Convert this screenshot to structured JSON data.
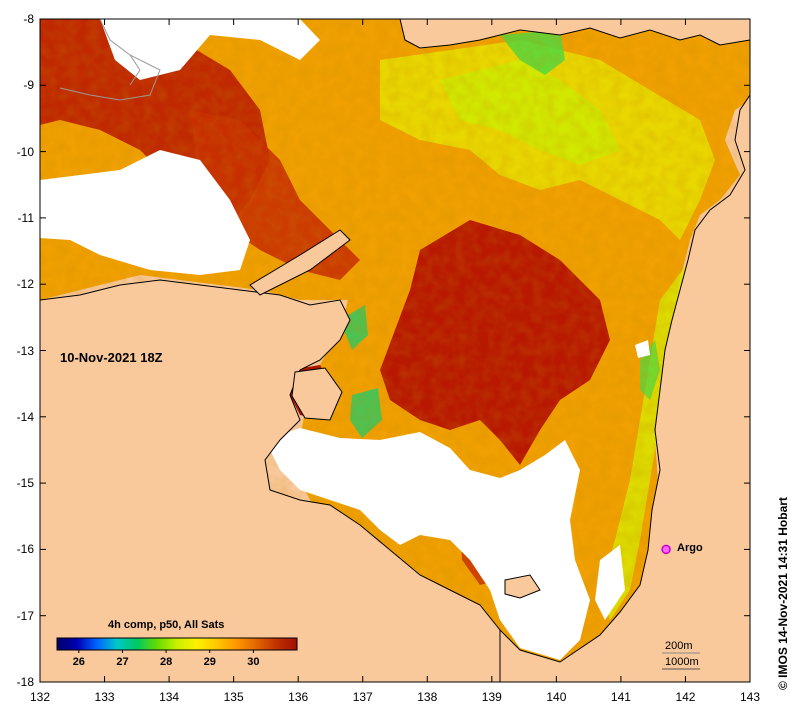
{
  "map": {
    "date_label": "10-Nov-2021 18Z",
    "x_ticks": [
      "132",
      "133",
      "134",
      "135",
      "136",
      "137",
      "138",
      "139",
      "140",
      "141",
      "142",
      "143"
    ],
    "y_ticks": [
      "-8",
      "-9",
      "-10",
      "-11",
      "-12",
      "-13",
      "-14",
      "-15",
      "-16",
      "-17",
      "-18"
    ],
    "colorbar": {
      "title": "4h comp, p50, All Sats",
      "ticks": [
        "26",
        "27",
        "28",
        "29",
        "30"
      ],
      "min": 25.5,
      "max": 31.0,
      "stops": [
        "#000066",
        "#0000b4",
        "#0064ff",
        "#00c8c8",
        "#00c864",
        "#64dc00",
        "#c8f000",
        "#fff000",
        "#ffc800",
        "#ff9600",
        "#e06400",
        "#c03000",
        "#a01000"
      ]
    },
    "argo": {
      "label": "Argo",
      "lon": 141.7,
      "lat": -16.0,
      "color": "#ff00ff"
    },
    "contour_legend": [
      "200m",
      "1000m"
    ],
    "credit": "© IMOS 14-Nov-2021 14:31 Hobart",
    "lon_range": [
      132,
      143
    ],
    "lat_range": [
      -18,
      -8
    ],
    "land_color": "#f9c89b",
    "nodata_color": "#ffffff"
  }
}
